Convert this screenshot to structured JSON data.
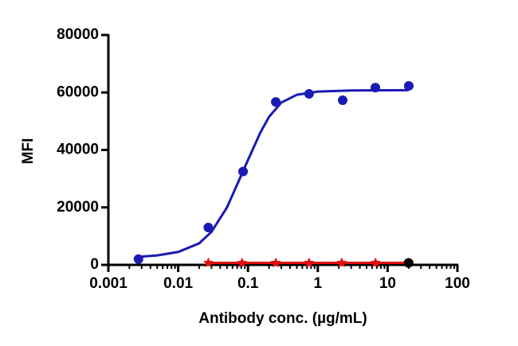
{
  "chart_data": {
    "type": "scatter",
    "x_label": "Antibody conc. (µg/mL)",
    "y_label": "MFI",
    "xscale": "log",
    "xlim": [
      0.001,
      100
    ],
    "xticks": [
      0.001,
      0.01,
      0.1,
      1,
      10,
      100
    ],
    "ylim": [
      0,
      80000
    ],
    "yticks": [
      0,
      20000,
      40000,
      60000,
      80000
    ],
    "series": [
      {
        "color": "#1a1ab4",
        "line": true,
        "x": [
          0.0027,
          0.005,
          0.01,
          0.02,
          0.03,
          0.05,
          0.07,
          0.1,
          0.15,
          0.2,
          0.3,
          0.5,
          1,
          3,
          20
        ],
        "values": [
          2800,
          3300,
          4500,
          7500,
          11500,
          20000,
          28000,
          36500,
          46000,
          51500,
          56500,
          59200,
          60300,
          60700,
          60800
        ]
      },
      {
        "color": "#1a1ab4",
        "marker": "circle",
        "x": [
          0.0027,
          0.027,
          0.085,
          0.25,
          0.75,
          2.27,
          6.67,
          20.1
        ],
        "values": [
          2000,
          13000,
          32500,
          56700,
          59500,
          57300,
          61700,
          62300
        ]
      },
      {
        "color": "#e01010",
        "marker": "star",
        "line": true,
        "x": [
          0.027,
          0.082,
          0.25,
          0.75,
          2.2,
          6.7,
          20
        ],
        "values": [
          700,
          700,
          700,
          700,
          700,
          700,
          700
        ]
      },
      {
        "color": "#000000",
        "marker": "circle",
        "x": [
          20
        ],
        "values": [
          700
        ]
      }
    ]
  }
}
